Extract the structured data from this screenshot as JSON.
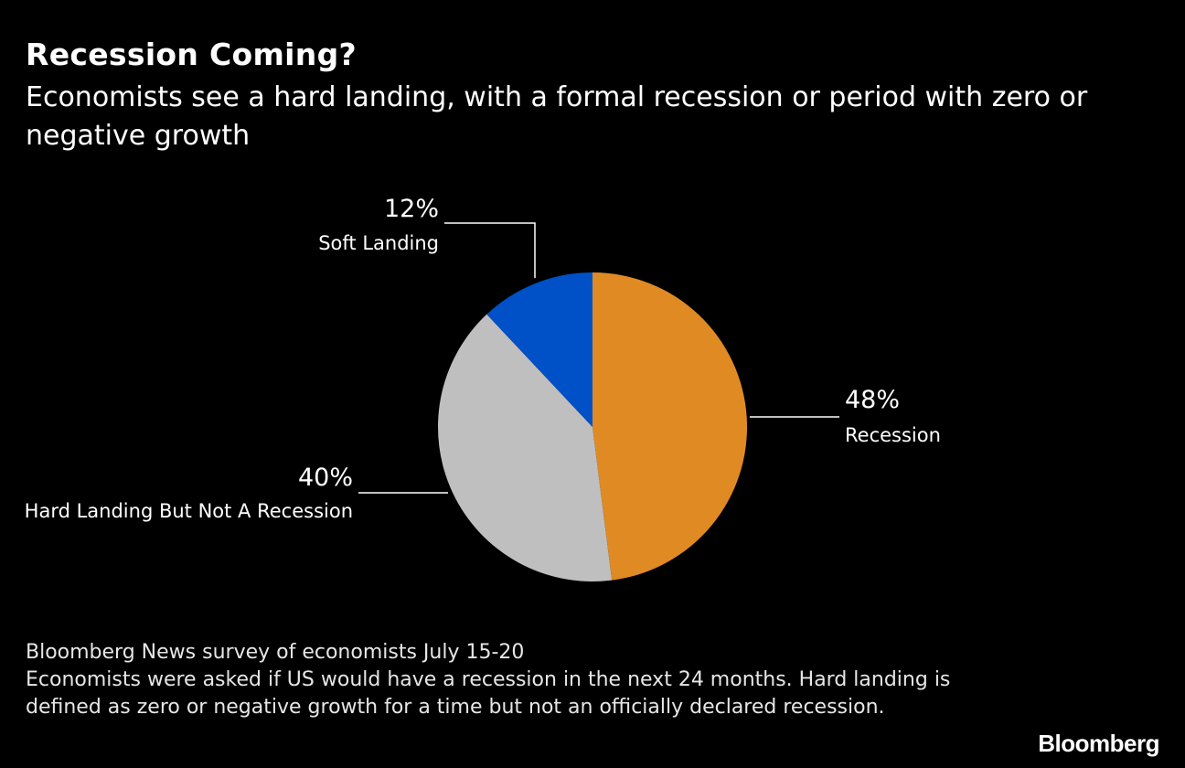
{
  "chart_data": {
    "type": "pie",
    "title": "Recession Coming?",
    "subtitle": "Economists see a hard landing, with a formal recession or period with zero or negative growth",
    "slices": [
      {
        "label": "Recession",
        "value": 48,
        "value_label": "48%",
        "color": "#e08a23"
      },
      {
        "label": "Hard Landing But Not A Recession",
        "value": 40,
        "value_label": "40%",
        "color": "#bfbfbf"
      },
      {
        "label": "Soft Landing",
        "value": 12,
        "value_label": "12%",
        "color": "#0050c8"
      }
    ],
    "start_direction": "12 o'clock",
    "order": "clockwise"
  },
  "footnotes": [
    "Bloomberg News survey of economists July 15-20",
    "Economists were asked if US would have a recession in the next 24 months. Hard landing is defined as zero or negative growth for a time but not an officially declared recession."
  ],
  "brand": "Bloomberg",
  "colors": {
    "background": "#000000",
    "text": "#ffffff",
    "leader_line": "#ffffff"
  }
}
